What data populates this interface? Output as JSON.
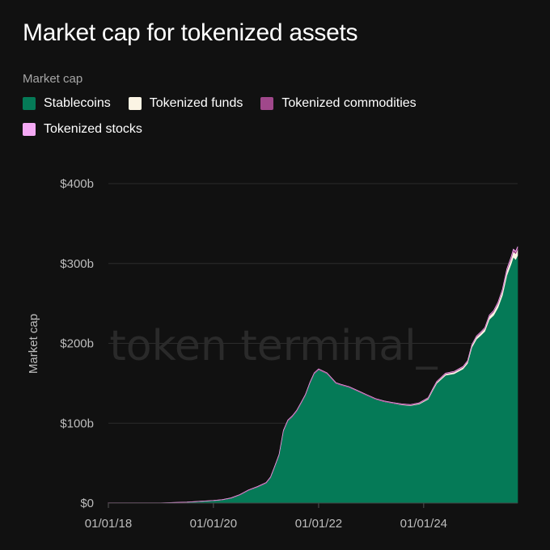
{
  "title": "Market cap for tokenized assets",
  "legend": {
    "title": "Market cap",
    "items": [
      {
        "label": "Stablecoins",
        "color": "#057a57"
      },
      {
        "label": "Tokenized funds",
        "color": "#fbf4e4"
      },
      {
        "label": "Tokenized commodities",
        "color": "#a0488b"
      },
      {
        "label": "Tokenized stocks",
        "color": "#f4a9f4"
      }
    ]
  },
  "watermark": "token terminal_",
  "chart_data": {
    "type": "area",
    "stacked": true,
    "ylabel": "Market cap",
    "y_unit": "USD billions",
    "ylim": [
      0,
      400
    ],
    "y_ticks": [
      0,
      100,
      200,
      300,
      400
    ],
    "y_tick_labels": [
      "$0",
      "$100b",
      "$200b",
      "$300b",
      "$400b"
    ],
    "xlim": [
      "2018-01-01",
      "2025-10-15"
    ],
    "x_ticks": [
      "2018-01-01",
      "2020-01-01",
      "2022-01-01",
      "2024-01-01"
    ],
    "x_tick_labels": [
      "01/01/18",
      "01/01/20",
      "01/01/22",
      "01/01/24"
    ],
    "grid": "horizontal",
    "legend_position": "top-left",
    "x": [
      "2018-01-01",
      "2018-07-01",
      "2019-01-01",
      "2019-07-01",
      "2019-10-01",
      "2020-01-01",
      "2020-03-01",
      "2020-05-01",
      "2020-07-01",
      "2020-09-01",
      "2020-11-01",
      "2021-01-01",
      "2021-02-01",
      "2021-03-01",
      "2021-04-01",
      "2021-05-01",
      "2021-06-01",
      "2021-07-01",
      "2021-08-01",
      "2021-09-01",
      "2021-10-01",
      "2021-11-01",
      "2021-12-01",
      "2022-01-01",
      "2022-03-01",
      "2022-05-01",
      "2022-06-01",
      "2022-08-01",
      "2022-10-01",
      "2022-12-01",
      "2023-02-01",
      "2023-04-01",
      "2023-06-01",
      "2023-08-01",
      "2023-10-01",
      "2023-12-01",
      "2024-02-01",
      "2024-03-01",
      "2024-04-01",
      "2024-06-01",
      "2024-08-01",
      "2024-10-01",
      "2024-11-01",
      "2024-12-01",
      "2025-01-01",
      "2025-02-01",
      "2025-03-01",
      "2025-04-01",
      "2025-05-01",
      "2025-06-01",
      "2025-07-01",
      "2025-08-01",
      "2025-09-01",
      "2025-09-15",
      "2025-10-01",
      "2025-10-15"
    ],
    "series": [
      {
        "name": "Stablecoins",
        "color": "#057a57",
        "values": [
          0,
          0,
          0,
          1,
          2,
          3,
          4,
          6,
          10,
          16,
          20,
          25,
          32,
          45,
          60,
          90,
          103,
          108,
          115,
          125,
          135,
          150,
          162,
          167,
          162,
          150,
          148,
          145,
          140,
          135,
          130,
          127,
          125,
          123,
          122,
          124,
          130,
          140,
          150,
          160,
          162,
          168,
          175,
          195,
          205,
          210,
          215,
          230,
          235,
          245,
          260,
          285,
          300,
          308,
          305,
          310
        ]
      },
      {
        "name": "Tokenized funds",
        "color": "#fbf4e4",
        "values": [
          0,
          0,
          0,
          0,
          0,
          0,
          0,
          0,
          0,
          0,
          0,
          0,
          0,
          0,
          0,
          0,
          0,
          0,
          0,
          0,
          0,
          0,
          0,
          0,
          0,
          0,
          0,
          0,
          0,
          0,
          0,
          0,
          0,
          0.3,
          0.5,
          0.8,
          1,
          1.2,
          1.5,
          1.8,
          2,
          2.2,
          2.4,
          2.6,
          3,
          3.2,
          3.5,
          4,
          4.5,
          5,
          5.5,
          6,
          6.5,
          7,
          7.2,
          7.5
        ]
      },
      {
        "name": "Tokenized commodities",
        "color": "#a0488b",
        "values": [
          0.3,
          0.3,
          0.3,
          0.3,
          0.3,
          0.4,
          0.4,
          0.5,
          0.6,
          0.6,
          0.7,
          0.8,
          0.9,
          1,
          1,
          1.1,
          1.1,
          1.1,
          1.1,
          1.1,
          1.1,
          1.1,
          1.1,
          1.1,
          1,
          0.9,
          0.9,
          0.8,
          0.8,
          0.8,
          0.9,
          0.9,
          0.9,
          0.9,
          0.9,
          0.9,
          1,
          1,
          1,
          1,
          1,
          1,
          1,
          1,
          1.1,
          1.2,
          1.3,
          1.5,
          1.6,
          1.8,
          2,
          2.1,
          2.3,
          2.5,
          2.6,
          2.8
        ]
      },
      {
        "name": "Tokenized stocks",
        "color": "#f4a9f4",
        "values": [
          0,
          0,
          0,
          0,
          0,
          0,
          0,
          0,
          0,
          0,
          0,
          0,
          0,
          0,
          0,
          0,
          0,
          0,
          0,
          0,
          0,
          0,
          0,
          0,
          0,
          0,
          0,
          0,
          0,
          0,
          0,
          0,
          0,
          0,
          0,
          0,
          0,
          0,
          0,
          0,
          0,
          0,
          0,
          0,
          0,
          0,
          0,
          0,
          0,
          0.1,
          0.3,
          0.4,
          0.5,
          0.6,
          0.7,
          0.8
        ]
      }
    ]
  }
}
